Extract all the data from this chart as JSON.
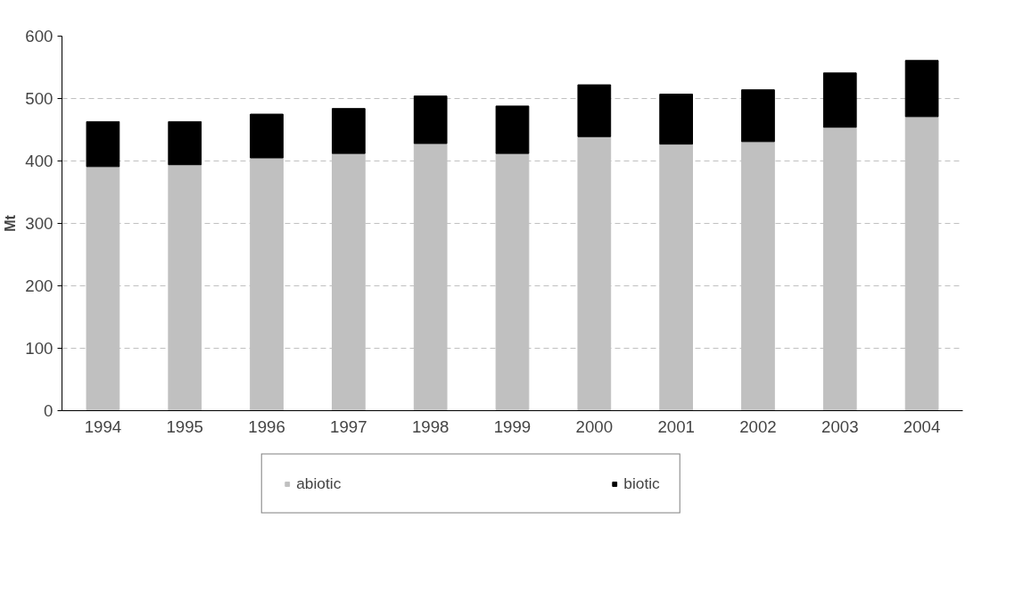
{
  "chart_data": {
    "type": "bar",
    "stacked": true,
    "ylabel": "Mt",
    "categories": [
      "1994",
      "1995",
      "1996",
      "1997",
      "1998",
      "1999",
      "2000",
      "2001",
      "2002",
      "2003",
      "2004"
    ],
    "series": [
      {
        "name": "abiotic",
        "color": "#c0c0c0",
        "values": [
          391,
          394,
          405,
          412,
          428,
          412,
          439,
          427,
          431,
          454,
          471
        ]
      },
      {
        "name": "biotic",
        "color": "#000000",
        "values": [
          72,
          69,
          70,
          72,
          76,
          76,
          83,
          80,
          83,
          87,
          90
        ]
      }
    ],
    "ylim": [
      0,
      600
    ],
    "yticks": [
      0,
      100,
      200,
      300,
      400,
      500,
      600
    ],
    "grid": "y",
    "legend": "bottom"
  }
}
